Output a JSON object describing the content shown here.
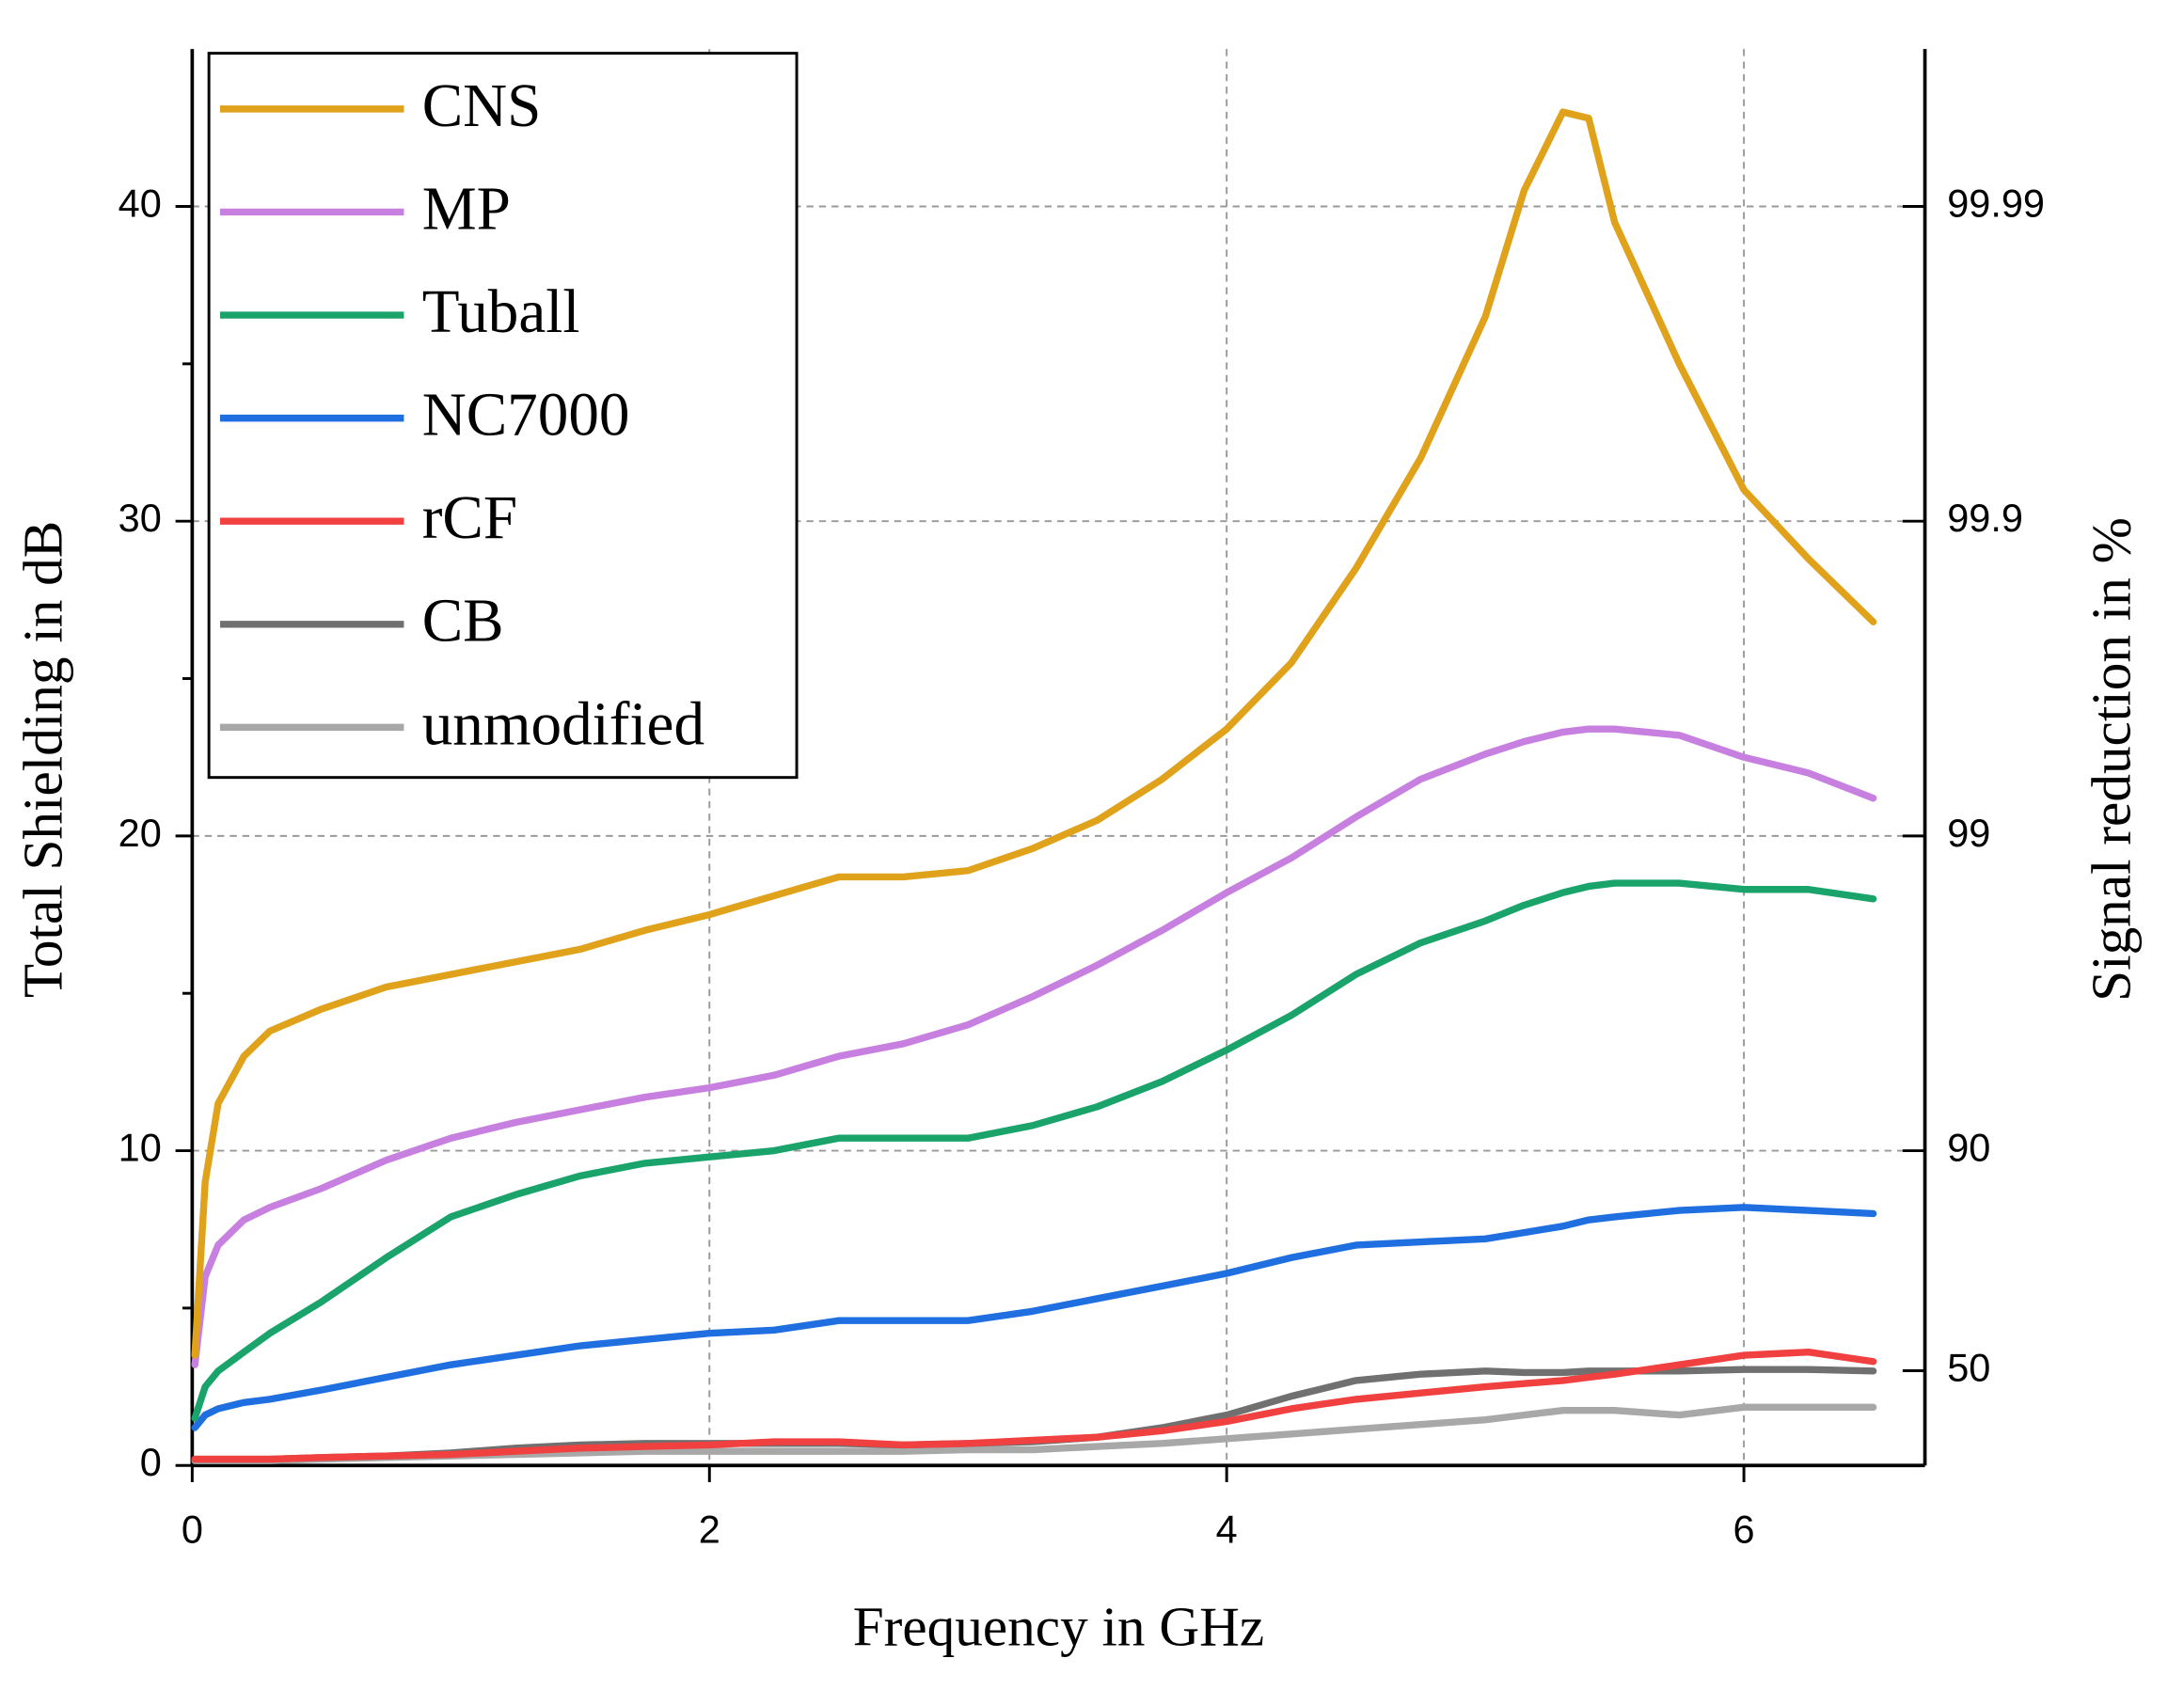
{
  "chart_data": {
    "type": "line",
    "x_label": "Frequency in GHz",
    "y_label": "Total Shielding in dB",
    "y2_label": "Signal reduction in %",
    "x": [
      0.01,
      0.05,
      0.1,
      0.2,
      0.3,
      0.5,
      0.75,
      1,
      1.25,
      1.5,
      1.75,
      2,
      2.25,
      2.5,
      2.75,
      3,
      3.25,
      3.5,
      3.75,
      4,
      4.25,
      4.5,
      4.75,
      5,
      5.15,
      5.3,
      5.4,
      5.5,
      5.75,
      6,
      6.25,
      6.5
    ],
    "series": [
      {
        "name": "CNS",
        "color": "#e0a11b",
        "values": [
          3.5,
          9,
          11.5,
          13,
          13.8,
          14.5,
          15.2,
          15.6,
          16.0,
          16.4,
          17,
          17.5,
          18.1,
          18.7,
          18.7,
          18.9,
          19.6,
          20.5,
          21.8,
          23.4,
          25.5,
          28.5,
          32,
          36.5,
          40.5,
          43,
          42.8,
          39.5,
          35,
          31,
          28.8,
          26.8
        ]
      },
      {
        "name": "MP",
        "color": "#c77fe0",
        "values": [
          3.2,
          6.0,
          7.0,
          7.8,
          8.2,
          8.8,
          9.7,
          10.4,
          10.9,
          11.3,
          11.7,
          12.0,
          12.4,
          13.0,
          13.4,
          14.0,
          14.9,
          15.9,
          17.0,
          18.2,
          19.3,
          20.6,
          21.8,
          22.6,
          23.0,
          23.3,
          23.4,
          23.4,
          23.2,
          22.5,
          22.0,
          21.2
        ]
      },
      {
        "name": "Tuball",
        "color": "#1aa36b",
        "values": [
          1.5,
          2.5,
          3.0,
          3.6,
          4.2,
          5.2,
          6.6,
          7.9,
          8.6,
          9.2,
          9.6,
          9.8,
          10.0,
          10.4,
          10.4,
          10.4,
          10.8,
          11.4,
          12.2,
          13.2,
          14.3,
          15.6,
          16.6,
          17.3,
          17.8,
          18.2,
          18.4,
          18.5,
          18.5,
          18.3,
          18.3,
          18.0
        ]
      },
      {
        "name": "NC7000",
        "color": "#1f6fe0",
        "values": [
          1.2,
          1.6,
          1.8,
          2.0,
          2.1,
          2.4,
          2.8,
          3.2,
          3.5,
          3.8,
          4.0,
          4.2,
          4.3,
          4.6,
          4.6,
          4.6,
          4.9,
          5.3,
          5.7,
          6.1,
          6.6,
          7.0,
          7.1,
          7.2,
          7.4,
          7.6,
          7.8,
          7.9,
          8.1,
          8.2,
          8.1,
          8.0
        ]
      },
      {
        "name": "rCF",
        "color": "#f04040",
        "values": [
          0.2,
          0.2,
          0.2,
          0.2,
          0.2,
          0.25,
          0.3,
          0.35,
          0.45,
          0.55,
          0.6,
          0.65,
          0.75,
          0.75,
          0.65,
          0.7,
          0.8,
          0.9,
          1.1,
          1.4,
          1.8,
          2.1,
          2.3,
          2.5,
          2.6,
          2.7,
          2.8,
          2.9,
          3.2,
          3.5,
          3.6,
          3.3
        ]
      },
      {
        "name": "CB",
        "color": "#707070",
        "values": [
          0.2,
          0.2,
          0.2,
          0.2,
          0.2,
          0.25,
          0.3,
          0.4,
          0.55,
          0.65,
          0.7,
          0.7,
          0.7,
          0.7,
          0.65,
          0.7,
          0.75,
          0.9,
          1.2,
          1.6,
          2.2,
          2.7,
          2.9,
          3.0,
          2.95,
          2.95,
          3.0,
          3.0,
          3.0,
          3.05,
          3.05,
          3.0
        ]
      },
      {
        "name": "unmodified",
        "color": "#a8a8a8",
        "values": [
          0.15,
          0.15,
          0.15,
          0.15,
          0.15,
          0.2,
          0.25,
          0.3,
          0.35,
          0.4,
          0.45,
          0.45,
          0.45,
          0.45,
          0.45,
          0.5,
          0.5,
          0.6,
          0.7,
          0.85,
          1.0,
          1.15,
          1.3,
          1.45,
          1.6,
          1.75,
          1.75,
          1.75,
          1.6,
          1.85,
          1.85,
          1.85
        ]
      }
    ],
    "xlim": [
      0,
      6.7
    ],
    "xticks": [
      0,
      2,
      4,
      6
    ],
    "ylim": [
      0,
      45
    ],
    "yticks": [
      0,
      10,
      20,
      30,
      40
    ],
    "yminor": [
      5,
      15,
      25,
      35
    ],
    "y2ticks": [
      50,
      90,
      99,
      99.9,
      99.99
    ],
    "y2scale": "attenuation",
    "grid": true,
    "legend": "upper left"
  }
}
